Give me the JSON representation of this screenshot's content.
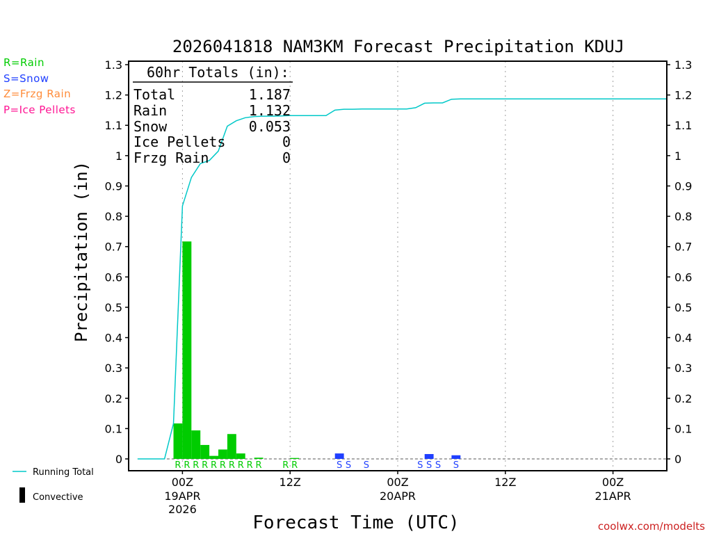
{
  "chart_data": {
    "type": "bar",
    "title": "2026041818 NAM3KM Forecast Precipitation KDUJ",
    "xlabel": "Forecast Time (UTC)",
    "ylabel": "Precipitation (in)",
    "ylim": [
      0,
      1.3
    ],
    "yticks": [
      "0",
      "0.1",
      "0.2",
      "0.3",
      "0.4",
      "0.5",
      "0.6",
      "0.7",
      "0.8",
      "0.9",
      "1",
      "1.1",
      "1.2",
      "1.3"
    ],
    "xlim_hours": [
      -6,
      54
    ],
    "xticks": [
      {
        "hour": 0,
        "label": "00Z",
        "sub1": "19APR",
        "sub2": "2026"
      },
      {
        "hour": 12,
        "label": "12Z",
        "sub1": "",
        "sub2": ""
      },
      {
        "hour": 24,
        "label": "00Z",
        "sub1": "20APR",
        "sub2": ""
      },
      {
        "hour": 36,
        "label": "12Z",
        "sub1": "",
        "sub2": ""
      },
      {
        "hour": 48,
        "label": "00Z",
        "sub1": "21APR",
        "sub2": ""
      }
    ],
    "series": [
      {
        "name": "Rain",
        "color": "#00cc00",
        "hours": [
          -1,
          0,
          1,
          2,
          3,
          4,
          5,
          6,
          8,
          12
        ],
        "values": [
          0.117,
          0.717,
          0.094,
          0.046,
          0.01,
          0.031,
          0.082,
          0.018,
          0.004,
          0.003
        ]
      },
      {
        "name": "Snow",
        "color": "#1f3fff",
        "hours": [
          17,
          27,
          30
        ],
        "values": [
          0.018,
          0.016,
          0.012
        ]
      }
    ],
    "running_total": {
      "name": "Running Total",
      "color": "#00c8c8",
      "hours": [
        -5,
        -2,
        -1,
        0,
        1,
        2,
        3,
        4,
        5,
        6,
        7,
        8,
        9,
        10,
        11,
        12,
        13,
        14,
        15,
        16,
        17,
        18,
        19,
        20,
        21,
        22,
        23,
        24,
        25,
        26,
        27,
        28,
        29,
        30,
        31,
        54
      ],
      "values": [
        0,
        0,
        0.117,
        0.834,
        0.928,
        0.974,
        0.984,
        1.015,
        1.097,
        1.115,
        1.125,
        1.129,
        1.13,
        1.13,
        1.131,
        1.132,
        1.132,
        1.132,
        1.132,
        1.132,
        1.15,
        1.153,
        1.153,
        1.154,
        1.154,
        1.154,
        1.154,
        1.154,
        1.154,
        1.158,
        1.173,
        1.174,
        1.174,
        1.186,
        1.187,
        1.187
      ]
    },
    "ptype_labels": [
      {
        "hour": -0.5,
        "text": "R",
        "type": "rain"
      },
      {
        "hour": 0.5,
        "text": "R",
        "type": "rain"
      },
      {
        "hour": 1.5,
        "text": "R",
        "type": "rain"
      },
      {
        "hour": 2.5,
        "text": "R",
        "type": "rain"
      },
      {
        "hour": 3.5,
        "text": "R",
        "type": "rain"
      },
      {
        "hour": 4.5,
        "text": "R",
        "type": "rain"
      },
      {
        "hour": 5.5,
        "text": "R",
        "type": "rain"
      },
      {
        "hour": 6.5,
        "text": "R",
        "type": "rain"
      },
      {
        "hour": 7.5,
        "text": "R",
        "type": "rain"
      },
      {
        "hour": 8.5,
        "text": "R",
        "type": "rain"
      },
      {
        "hour": 11.5,
        "text": "R",
        "type": "rain"
      },
      {
        "hour": 12.5,
        "text": "R",
        "type": "rain"
      },
      {
        "hour": 17.5,
        "text": "S",
        "type": "snow"
      },
      {
        "hour": 18.5,
        "text": "S",
        "type": "snow"
      },
      {
        "hour": 20.5,
        "text": "S",
        "type": "snow"
      },
      {
        "hour": 26.5,
        "text": "S",
        "type": "snow"
      },
      {
        "hour": 27.5,
        "text": "S",
        "type": "snow"
      },
      {
        "hour": 28.5,
        "text": "S",
        "type": "snow"
      },
      {
        "hour": 30.5,
        "text": "S",
        "type": "snow"
      }
    ],
    "totals_box": {
      "header": "60hr Totals (in):",
      "rows": [
        {
          "label": "Total",
          "value": "1.187"
        },
        {
          "label": "Rain",
          "value": "1.132"
        },
        {
          "label": "Snow",
          "value": "0.053"
        },
        {
          "label": "Ice Pellets",
          "value": "0"
        },
        {
          "label": "Frzg Rain",
          "value": "0"
        }
      ]
    }
  },
  "legend": {
    "ptypes": [
      {
        "label": "R=Rain",
        "color": "#00cc00"
      },
      {
        "label": "S=Snow",
        "color": "#1f3fff"
      },
      {
        "label": "Z=Frzg Rain",
        "color": "#ff8c3a"
      },
      {
        "label": "P=Ice Pellets",
        "color": "#ff1493"
      }
    ],
    "running_total_label": "Running Total",
    "convective_label": "Convective"
  },
  "credit": "coolwx.com/modelts",
  "colors": {
    "rain": "#00cc00",
    "snow": "#1f3fff",
    "grid": "#a0a0a0",
    "axis": "#000000"
  }
}
